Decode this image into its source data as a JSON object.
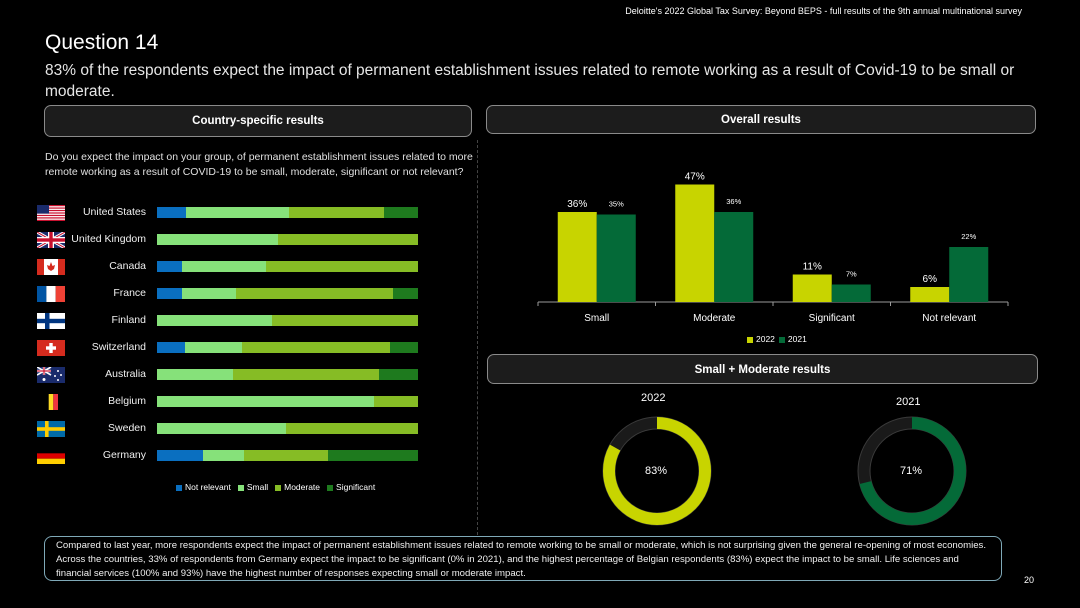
{
  "header_source": "Deloitte's 2022 Global Tax Survey: Beyond BEPS  - full results of the 9th annual multinational survey",
  "title": "Question 14",
  "subtitle": "83% of the respondents expect the impact of permanent establishment issues related to remote working as a result of Covid-19 to be small or moderate.",
  "sections": {
    "country": "Country-specific results",
    "overall": "Overall results",
    "small_moderate": "Small + Moderate results"
  },
  "question": "Do you expect the impact on your group, of permanent establishment issues related to more remote working as a result of COVID-19 to be small, moderate, significant or not relevant?",
  "colors": {
    "not_relevant": "#0a6fc0",
    "small": "#86e17a",
    "moderate": "#86bc25",
    "significant": "#1e7a1e",
    "y2022": "#c8d400",
    "y2021": "#046a38",
    "donut_track": "#2a2a2a"
  },
  "flags": [
    "us-flag-icon",
    "uk-flag-icon",
    "canada-flag-icon",
    "france-flag-icon",
    "finland-flag-icon",
    "switzerland-flag-icon",
    "australia-flag-icon",
    "belgium-flag-icon",
    "sweden-flag-icon",
    "germany-flag-icon"
  ],
  "chart_data": [
    {
      "type": "bar",
      "orientation": "horizontal-stacked-100",
      "categories": [
        "United States",
        "United Kingdom",
        "Canada",
        "France",
        "Finland",
        "Switzerland",
        "Australia",
        "Belgium",
        "Sweden",
        "Germany"
      ],
      "series": [
        {
          "name": "Not relevant",
          "values": [
            10,
            0,
            9,
            9,
            0,
            10,
            0,
            0,
            0,
            17
          ]
        },
        {
          "name": "Small",
          "values": [
            36,
            43,
            30,
            19,
            41,
            20,
            27,
            83,
            46,
            15
          ]
        },
        {
          "name": "Moderate",
          "values": [
            33,
            50,
            54,
            56,
            52,
            52,
            52,
            17,
            47,
            31
          ]
        },
        {
          "name": "Significant",
          "values": [
            12,
            0,
            0,
            9,
            0,
            10,
            14,
            0,
            0,
            33
          ]
        }
      ],
      "legend": "bottom"
    },
    {
      "type": "bar",
      "categories": [
        "Small",
        "Moderate",
        "Significant",
        "Not relevant"
      ],
      "series": [
        {
          "name": "2022",
          "values": [
            36,
            47,
            11,
            6
          ],
          "labels": [
            "36%",
            "47%",
            "11%",
            "6%"
          ]
        },
        {
          "name": "2021",
          "values": [
            35,
            36,
            7,
            22
          ],
          "labels": [
            "35%",
            "36%",
            "7%",
            "22%"
          ]
        }
      ],
      "ylim": [
        0,
        50
      ],
      "legend": "bottom"
    },
    {
      "type": "pie",
      "variant": "donut",
      "charts": [
        {
          "label": "2022",
          "value": 83,
          "display": "83%"
        },
        {
          "label": "2021",
          "value": 71,
          "display": "71%"
        }
      ]
    }
  ],
  "commentary": "Compared to last year, more respondents expect the impact of permanent establishment issues related to remote working to be small or moderate, which is not surprising given the general re-opening of most economies. Across the countries, 33% of respondents from Germany expect the impact to be significant (0% in 2021), and the highest percentage of Belgian respondents (83%) expect the impact to be small. Life sciences and financial services (100% and 93%) have the highest number of responses expecting small or moderate impact.",
  "page_number": "20"
}
